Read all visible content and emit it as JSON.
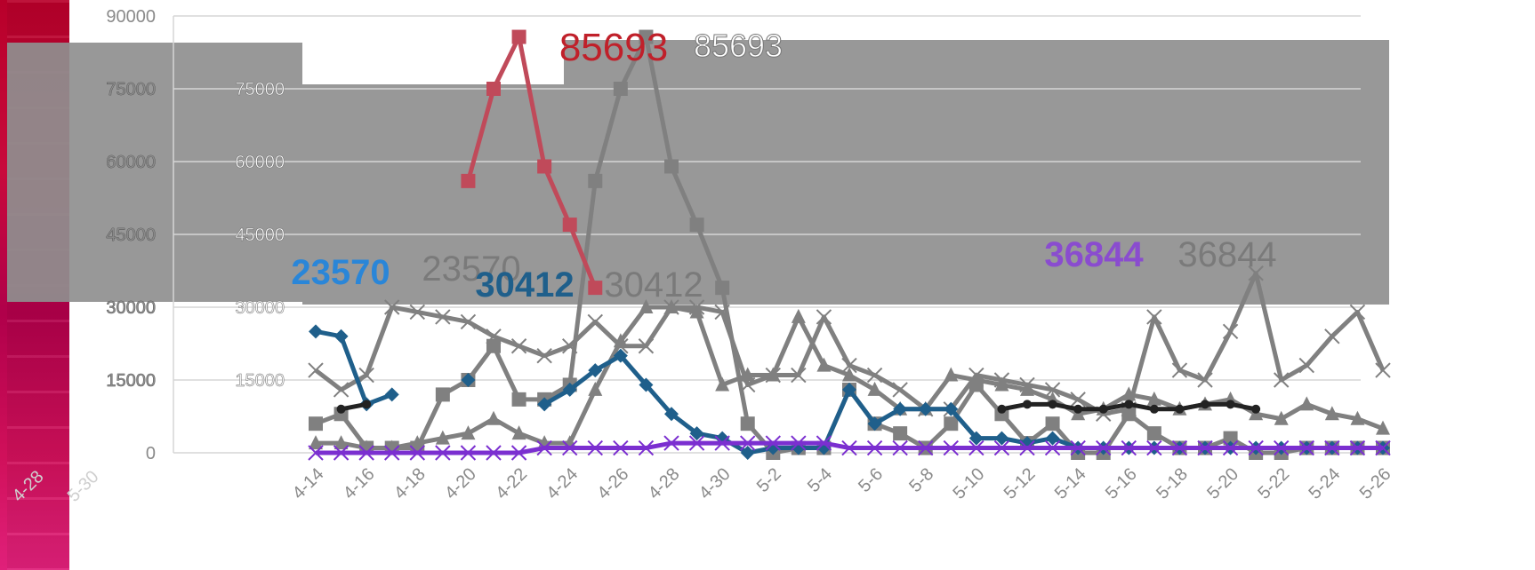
{
  "chart_data": {
    "type": "line",
    "title": "",
    "xlabel": "",
    "ylabel": "",
    "ylim": [
      0,
      90000
    ],
    "y_ticks": [
      "0",
      "15000",
      "30000",
      "45000",
      "60000",
      "75000",
      "90000"
    ],
    "categories": [
      "4-14",
      "4-15",
      "4-16",
      "4-17",
      "4-18",
      "4-19",
      "4-20",
      "4-21",
      "4-22",
      "4-23",
      "4-24",
      "4-25",
      "4-26",
      "4-27",
      "4-28",
      "4-29",
      "4-30",
      "5-1",
      "5-2",
      "5-3",
      "5-4",
      "5-5",
      "5-6",
      "5-7",
      "5-8",
      "5-9",
      "5-10",
      "5-11",
      "5-12",
      "5-13",
      "5-14",
      "5-15",
      "5-16",
      "5-17",
      "5-18",
      "5-19",
      "5-20",
      "5-21",
      "5-22",
      "5-23",
      "5-24",
      "5-25",
      "5-26"
    ],
    "x_tick_labels": [
      "4-14",
      "4-16",
      "4-18",
      "4-20",
      "4-22",
      "4-24",
      "4-26",
      "4-28",
      "4-30",
      "5-2",
      "5-4",
      "5-6",
      "5-8",
      "5-10",
      "5-12",
      "5-14",
      "5-16",
      "5-18",
      "5-20",
      "5-22",
      "5-24",
      "5-26"
    ],
    "left_fragment_tick_labels": [
      "4-28",
      "5-30"
    ],
    "grid": true,
    "legend": "none",
    "series": [
      {
        "color": "#808080",
        "marker": "x",
        "values": [
          17000,
          13000,
          16000,
          30000,
          29000,
          28000,
          27000,
          24000,
          22000,
          20000,
          22000,
          27000,
          22000,
          22000,
          30000,
          30000,
          29000,
          14000,
          16000,
          16000,
          28000,
          18000,
          16000,
          13000,
          9000,
          9000,
          16000,
          15000,
          14000,
          13000,
          11000,
          8000,
          9000,
          28000,
          17000,
          15000,
          25000,
          37000,
          15000,
          18000,
          24000,
          29000,
          17000
        ]
      },
      {
        "color": "#808080",
        "marker": "square",
        "values": [
          6000,
          8000,
          1000,
          1000,
          1000,
          12000,
          15000,
          22000,
          11000,
          11000,
          14000,
          56000,
          75000,
          85693,
          59000,
          47000,
          34000,
          6000,
          0,
          1000,
          1000,
          13000,
          6000,
          4000,
          1000,
          6000,
          14000,
          8000,
          2000,
          6000,
          0,
          0,
          8000,
          4000,
          1000,
          1000,
          3000,
          0,
          0,
          1000,
          1000,
          1000,
          1000
        ]
      },
      {
        "color": "#808080",
        "marker": "triangle",
        "values": [
          2000,
          2000,
          1000,
          1000,
          2000,
          3000,
          4000,
          7000,
          4000,
          2000,
          2000,
          13000,
          23000,
          30000,
          30000,
          29000,
          14000,
          16000,
          16000,
          28000,
          18000,
          16000,
          13000,
          9000,
          9000,
          16000,
          15000,
          14000,
          13000,
          11000,
          8000,
          9000,
          12000,
          11000,
          9000,
          10000,
          11000,
          8000,
          7000,
          10000,
          8000,
          7000,
          5000
        ]
      },
      {
        "color": "#c04a5a",
        "marker": "square",
        "values": [
          null,
          null,
          null,
          null,
          null,
          null,
          56000,
          75000,
          85693,
          59000,
          47000,
          34000,
          null,
          null,
          null,
          null,
          null,
          null,
          null,
          null,
          null,
          null,
          null,
          null,
          null,
          null,
          null,
          null,
          null,
          null,
          null,
          null,
          null,
          null,
          null,
          null,
          null,
          null,
          null,
          null,
          null,
          null,
          null
        ]
      },
      {
        "color": "#1f5f8b",
        "marker": "diamond",
        "values": [
          25000,
          24000,
          10000,
          12000,
          null,
          null,
          15000,
          null,
          null,
          10000,
          13000,
          17000,
          20000,
          14000,
          8000,
          4000,
          3000,
          0,
          1000,
          1000,
          1000,
          13000,
          6000,
          9000,
          9000,
          9000,
          3000,
          3000,
          2000,
          3000,
          1000,
          1000,
          1000,
          1000,
          1000,
          1000,
          1000,
          1000,
          1000,
          1000,
          1000,
          1000,
          1000
        ]
      },
      {
        "color": "#7b2fd0",
        "marker": "x",
        "values": [
          0,
          0,
          0,
          0,
          0,
          0,
          0,
          0,
          0,
          1000,
          1000,
          1000,
          1000,
          1000,
          2000,
          2000,
          2000,
          2000,
          2000,
          2000,
          2000,
          1000,
          1000,
          1000,
          1000,
          1000,
          1000,
          1000,
          1000,
          1000,
          1000,
          1000,
          1000,
          1000,
          1000,
          1000,
          1000,
          1000,
          1000,
          1000,
          1000,
          1000,
          1000
        ]
      },
      {
        "color": "#222222",
        "marker": "circle",
        "values": [
          null,
          9000,
          10000,
          null,
          null,
          null,
          null,
          null,
          null,
          null,
          null,
          null,
          null,
          null,
          null,
          null,
          null,
          null,
          null,
          null,
          null,
          null,
          null,
          null,
          null,
          null,
          null,
          9000,
          10000,
          10000,
          9000,
          9000,
          10000,
          9000,
          9000,
          10000,
          10000,
          9000,
          null,
          null,
          null,
          null,
          null
        ]
      }
    ],
    "annotations": [
      "23570",
      "23570",
      "30412",
      "30412",
      "36844",
      "36844",
      "85693",
      "85693"
    ]
  }
}
